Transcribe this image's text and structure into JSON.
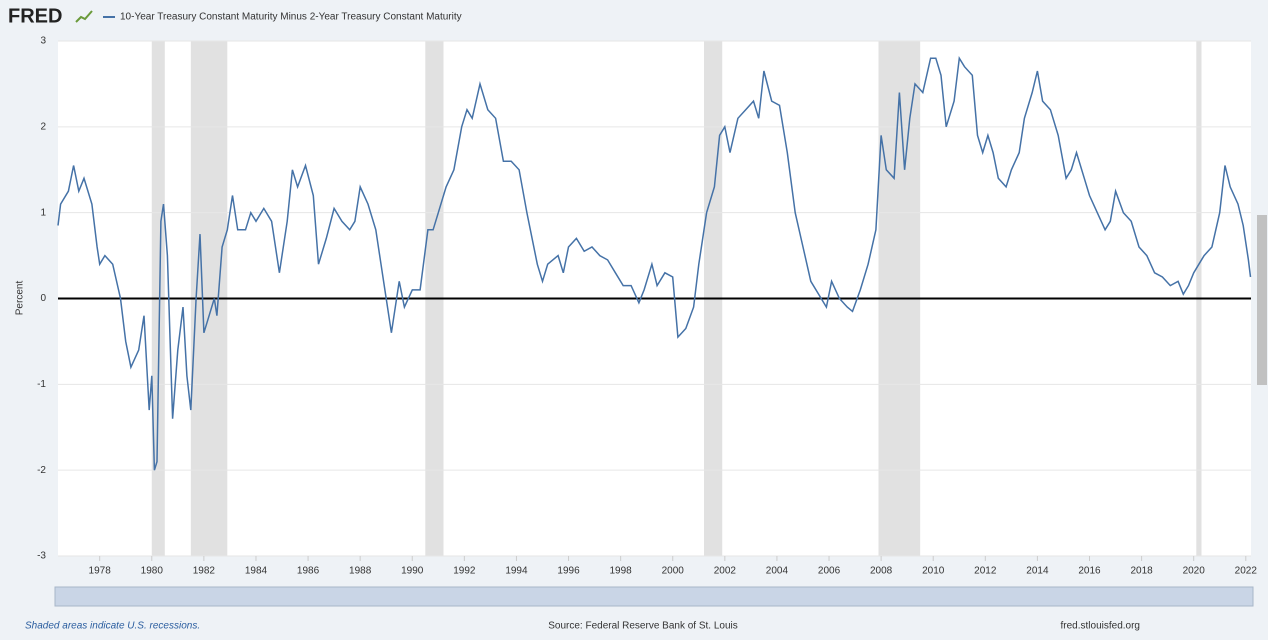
{
  "logo": "FRED",
  "footer": {
    "note": "Shaded areas indicate U.S. recessions.",
    "source": "Source: Federal Reserve Bank of St. Louis",
    "site": "fred.stlouisfed.org"
  },
  "chart_data": {
    "type": "line",
    "y_label": "Percent",
    "x": [
      1976.4,
      1976.5,
      1976.8,
      1977.0,
      1977.2,
      1977.4,
      1977.7,
      1977.9,
      1978.0,
      1978.2,
      1978.5,
      1978.8,
      1979.0,
      1979.2,
      1979.5,
      1979.7,
      1979.9,
      1980.0,
      1980.1,
      1980.2,
      1980.35,
      1980.45,
      1980.6,
      1980.8,
      1981.0,
      1981.2,
      1981.35,
      1981.5,
      1981.7,
      1981.85,
      1982.0,
      1982.2,
      1982.4,
      1982.5,
      1982.7,
      1982.9,
      1983.1,
      1983.3,
      1983.6,
      1983.8,
      1984.0,
      1984.3,
      1984.6,
      1984.9,
      1985.2,
      1985.4,
      1985.6,
      1985.9,
      1986.2,
      1986.4,
      1986.7,
      1987.0,
      1987.3,
      1987.6,
      1987.8,
      1988.0,
      1988.3,
      1988.6,
      1988.8,
      1989.0,
      1989.2,
      1989.5,
      1989.7,
      1990.0,
      1990.3,
      1990.6,
      1990.8,
      1991.0,
      1991.3,
      1991.6,
      1991.9,
      1992.1,
      1992.3,
      1992.6,
      1992.9,
      1993.2,
      1993.5,
      1993.8,
      1994.1,
      1994.4,
      1994.8,
      1995.0,
      1995.2,
      1995.6,
      1995.8,
      1996.0,
      1996.3,
      1996.6,
      1996.9,
      1997.2,
      1997.5,
      1997.8,
      1998.1,
      1998.4,
      1998.7,
      1998.9,
      1999.2,
      1999.4,
      1999.7,
      2000.0,
      2000.2,
      2000.5,
      2000.8,
      2001.0,
      2001.3,
      2001.6,
      2001.8,
      2002.0,
      2002.2,
      2002.5,
      2002.8,
      2003.1,
      2003.3,
      2003.5,
      2003.8,
      2004.1,
      2004.4,
      2004.7,
      2005.0,
      2005.3,
      2005.7,
      2005.9,
      2006.1,
      2006.4,
      2006.7,
      2006.9,
      2007.2,
      2007.5,
      2007.8,
      2008.0,
      2008.2,
      2008.5,
      2008.7,
      2008.9,
      2009.1,
      2009.3,
      2009.6,
      2009.9,
      2010.1,
      2010.3,
      2010.5,
      2010.8,
      2011.0,
      2011.2,
      2011.5,
      2011.7,
      2011.9,
      2012.1,
      2012.3,
      2012.5,
      2012.8,
      2013.0,
      2013.3,
      2013.5,
      2013.8,
      2014.0,
      2014.2,
      2014.5,
      2014.8,
      2015.1,
      2015.3,
      2015.5,
      2015.8,
      2016.0,
      2016.3,
      2016.6,
      2016.8,
      2017.0,
      2017.3,
      2017.6,
      2017.9,
      2018.2,
      2018.5,
      2018.8,
      2019.1,
      2019.4,
      2019.6,
      2019.8,
      2020.0,
      2020.2,
      2020.4,
      2020.7,
      2021.0,
      2021.2,
      2021.4,
      2021.7,
      2021.9,
      2022.1,
      2022.18
    ],
    "series": [
      {
        "name": "10-Year Treasury Constant Maturity Minus 2-Year Treasury Constant Maturity",
        "color": "#4572a7",
        "values": [
          0.85,
          1.1,
          1.25,
          1.55,
          1.25,
          1.4,
          1.1,
          0.6,
          0.4,
          0.5,
          0.4,
          0.0,
          -0.5,
          -0.8,
          -0.6,
          -0.2,
          -1.3,
          -0.9,
          -2.0,
          -1.9,
          0.9,
          1.1,
          0.5,
          -1.4,
          -0.6,
          -0.1,
          -0.9,
          -1.3,
          0.0,
          0.75,
          -0.4,
          -0.2,
          0.0,
          -0.2,
          0.6,
          0.8,
          1.2,
          0.8,
          0.8,
          1.0,
          0.9,
          1.05,
          0.9,
          0.3,
          0.9,
          1.5,
          1.3,
          1.55,
          1.2,
          0.4,
          0.7,
          1.05,
          0.9,
          0.8,
          0.9,
          1.3,
          1.1,
          0.8,
          0.4,
          0.0,
          -0.4,
          0.2,
          -0.1,
          0.1,
          0.1,
          0.8,
          0.8,
          1.0,
          1.3,
          1.5,
          2.0,
          2.2,
          2.1,
          2.5,
          2.2,
          2.1,
          1.6,
          1.6,
          1.5,
          1.0,
          0.4,
          0.2,
          0.4,
          0.5,
          0.3,
          0.6,
          0.7,
          0.55,
          0.6,
          0.5,
          0.45,
          0.3,
          0.15,
          0.15,
          -0.05,
          0.1,
          0.4,
          0.15,
          0.3,
          0.25,
          -0.45,
          -0.35,
          -0.1,
          0.4,
          1.0,
          1.3,
          1.9,
          2.0,
          1.7,
          2.1,
          2.2,
          2.3,
          2.1,
          2.65,
          2.3,
          2.25,
          1.7,
          1.0,
          0.6,
          0.2,
          0.0,
          -0.1,
          0.2,
          0.0,
          -0.1,
          -0.15,
          0.1,
          0.4,
          0.8,
          1.9,
          1.5,
          1.4,
          2.4,
          1.5,
          2.1,
          2.5,
          2.4,
          2.8,
          2.8,
          2.6,
          2.0,
          2.3,
          2.8,
          2.7,
          2.6,
          1.9,
          1.7,
          1.9,
          1.7,
          1.4,
          1.3,
          1.5,
          1.7,
          2.1,
          2.4,
          2.65,
          2.3,
          2.2,
          1.9,
          1.4,
          1.5,
          1.7,
          1.4,
          1.2,
          1.0,
          0.8,
          0.9,
          1.25,
          1.0,
          0.9,
          0.6,
          0.5,
          0.3,
          0.25,
          0.15,
          0.2,
          0.05,
          0.15,
          0.3,
          0.4,
          0.5,
          0.6,
          1.0,
          1.55,
          1.3,
          1.1,
          0.85,
          0.45,
          0.25
        ]
      }
    ],
    "recessions": [
      [
        1980.0,
        1980.5
      ],
      [
        1981.5,
        1982.9
      ],
      [
        1990.5,
        1991.2
      ],
      [
        2001.2,
        2001.9
      ],
      [
        2007.9,
        2009.5
      ],
      [
        2020.1,
        2020.3
      ]
    ],
    "recession_color": "#e1e1e1",
    "xlim": [
      1976.4,
      2022.2
    ],
    "xticks": [
      1978,
      1980,
      1982,
      1984,
      1986,
      1988,
      1990,
      1992,
      1994,
      1996,
      1998,
      2000,
      2002,
      2004,
      2006,
      2008,
      2010,
      2012,
      2014,
      2016,
      2018,
      2020,
      2022
    ],
    "ylim": [
      -3,
      3
    ],
    "yticks": [
      -3,
      -2,
      -1,
      0,
      1,
      2,
      3
    ],
    "grid": true,
    "zero_line": true
  }
}
